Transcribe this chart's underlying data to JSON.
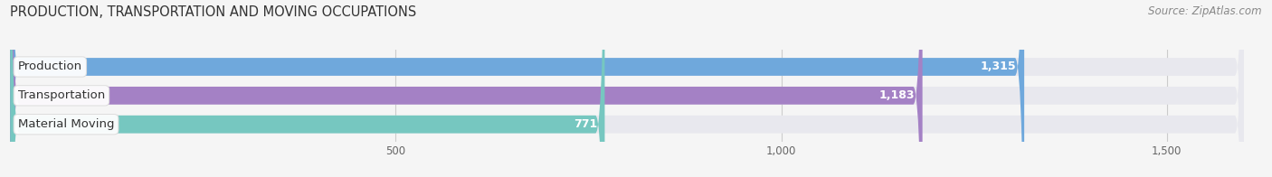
{
  "title": "PRODUCTION, TRANSPORTATION AND MOVING OCCUPATIONS",
  "source": "Source: ZipAtlas.com",
  "categories": [
    "Production",
    "Transportation",
    "Material Moving"
  ],
  "values": [
    1315,
    1183,
    771
  ],
  "bar_colors": [
    "#6fa8dc",
    "#a481c5",
    "#76c7c0"
  ],
  "track_color": "#e8e8ee",
  "value_labels": [
    "1,315",
    "1,183",
    "771"
  ],
  "xlim_max": 1600,
  "xticks": [
    500,
    1000,
    1500
  ],
  "xtick_labels": [
    "500",
    "1,000",
    "1,500"
  ],
  "bar_height": 0.62,
  "background_color": "#f5f5f5",
  "title_fontsize": 10.5,
  "source_fontsize": 8.5,
  "label_fontsize": 9.5,
  "value_fontsize": 9
}
